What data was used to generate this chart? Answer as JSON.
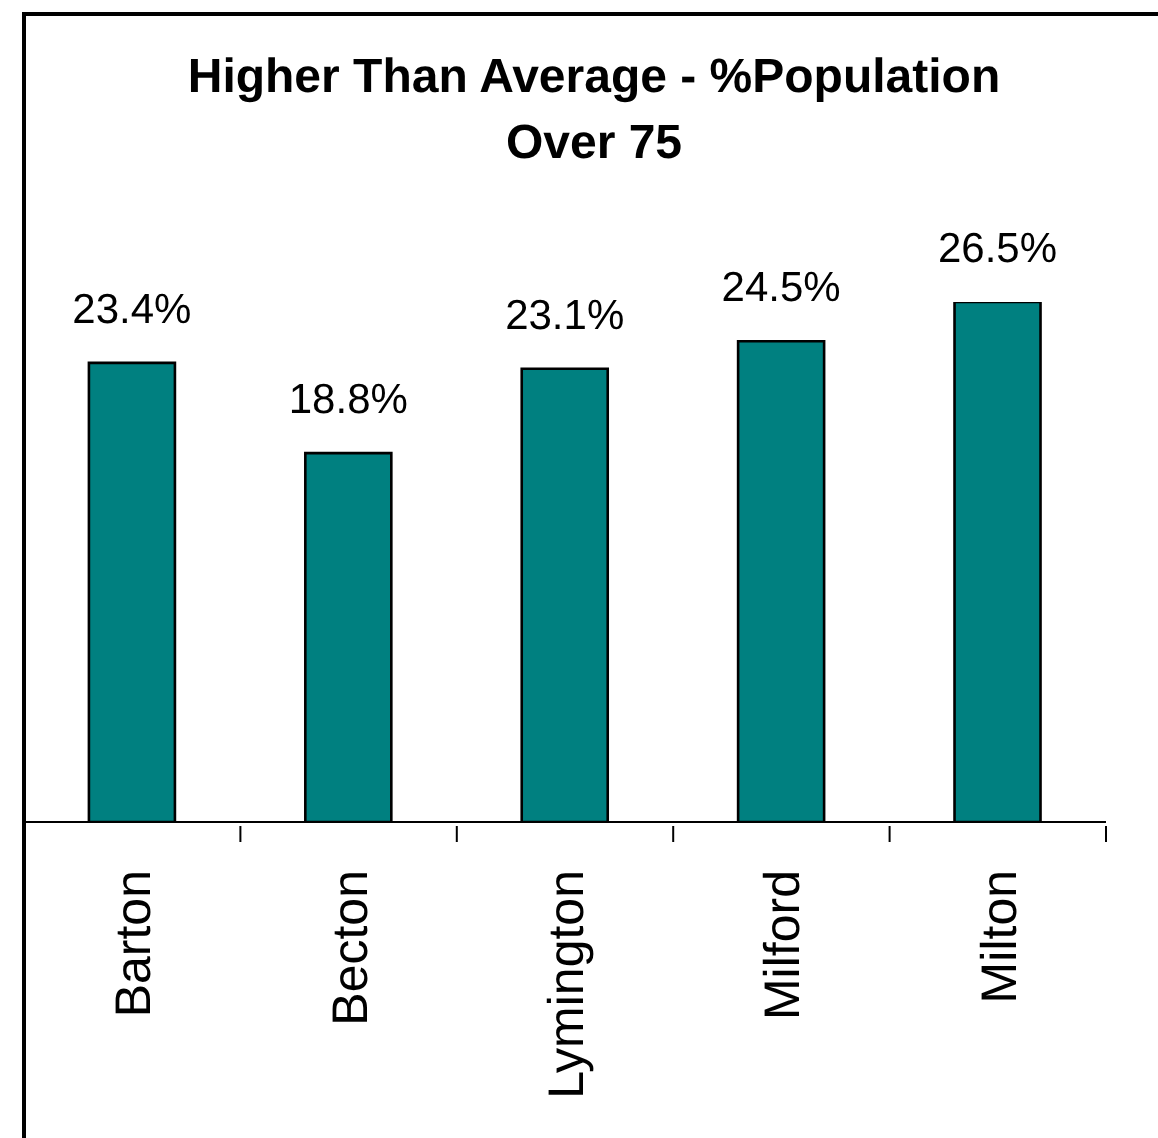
{
  "chart_data": {
    "type": "bar",
    "title": "Higher Than Average - %Population Over 75",
    "categories": [
      "Barton",
      "Becton",
      "Lymington",
      "Milford",
      "Milton"
    ],
    "values": [
      23.4,
      18.8,
      23.1,
      24.5,
      26.5
    ],
    "value_labels": [
      "23.4%",
      "18.8%",
      "23.1%",
      "24.5%",
      "26.5%"
    ],
    "color": "#008080",
    "tick_labels": "x"
  }
}
